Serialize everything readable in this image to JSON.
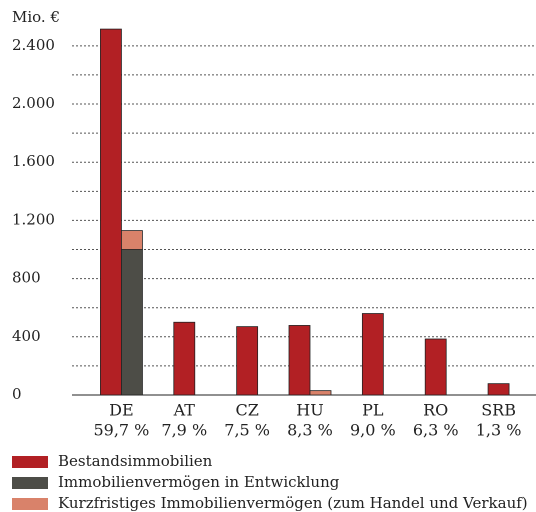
{
  "chart_data": {
    "type": "bar",
    "y_unit": "Mio. €",
    "categories": [
      "DE",
      "AT",
      "CZ",
      "HU",
      "PL",
      "RO",
      "SRB"
    ],
    "category_shares": [
      "59,7 %",
      "7,9 %",
      "7,5 %",
      "8,3 %",
      "9,0 %",
      "6,3 %",
      "1,3 %"
    ],
    "series": [
      {
        "name": "Bestandsimmobilien",
        "color": "#b22024",
        "values": [
          2515,
          500,
          470,
          478,
          560,
          385,
          78
        ]
      },
      {
        "name": "Immobilienvermögen in Entwicklung",
        "color": "#4d4d47",
        "values": [
          1000,
          null,
          null,
          null,
          null,
          null,
          null
        ]
      },
      {
        "name": "Kurzfristiges Immobilienvermögen (zum Handel und Verkauf)",
        "color": "#d9826a",
        "values": [
          130,
          null,
          null,
          30,
          null,
          null,
          null
        ]
      }
    ],
    "ylim": [
      0,
      2550
    ],
    "yticks": [
      0,
      400,
      800,
      {
        "value": 1200,
        "label": "1.200"
      },
      {
        "value": 1600,
        "label": "1.600"
      },
      {
        "value": 2000,
        "label": "2.000"
      },
      {
        "value": 2400,
        "label": "2.400"
      }
    ],
    "minor_yticks": [
      200,
      600,
      1000,
      1400,
      1800,
      2200
    ],
    "grid": true
  }
}
